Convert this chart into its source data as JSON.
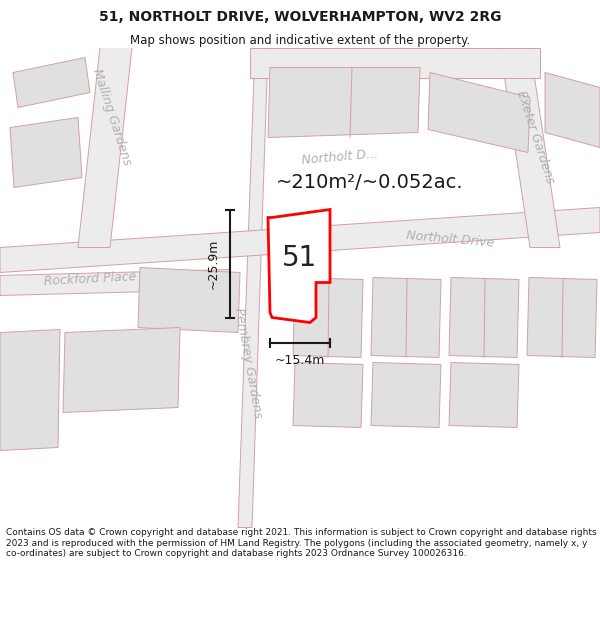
{
  "title": "51, NORTHOLT DRIVE, WOLVERHAMPTON, WV2 2RG",
  "subtitle": "Map shows position and indicative extent of the property.",
  "area_text": "~210m²/~0.052ac.",
  "dim_width": "~15.4m",
  "dim_height": "~25.9m",
  "label_51": "51",
  "footer": "Contains OS data © Crown copyright and database right 2021. This information is subject to Crown copyright and database rights 2023 and is reproduced with the permission of HM Land Registry. The polygons (including the associated geometry, namely x, y co-ordinates) are subject to Crown copyright and database rights 2023 Ordnance Survey 100026316.",
  "bg_color": "#ffffff",
  "map_bg": "#ffffff",
  "road_fill": "#ececec",
  "bld_fill": "#e0e0e0",
  "bld_edge": "#d4a0a0",
  "road_edge": "#d4a0a0",
  "plot_color": "#ff0000",
  "street_color": "#b0b0b0",
  "dim_color": "#1a1a1a",
  "title_color": "#1a1a1a",
  "footer_color": "#1a1a1a",
  "area_color": "#1a1a1a"
}
